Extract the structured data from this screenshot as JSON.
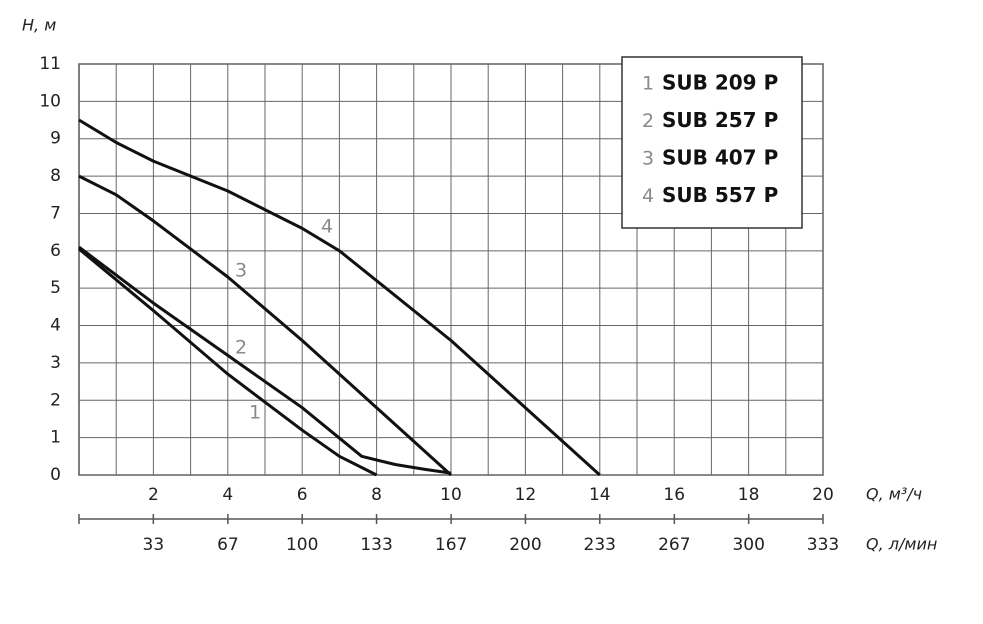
{
  "chart_data": {
    "type": "line",
    "ylabel": "H, м",
    "xlabel": "Q, м³/ч",
    "x2label": "Q, л/мин",
    "xlim": [
      0,
      20
    ],
    "xticks": [
      2,
      4,
      6,
      8,
      10,
      12,
      14,
      16,
      18,
      20
    ],
    "x2lim": [
      0,
      333.3
    ],
    "x2ticks": [
      {
        "value": 33.3,
        "label": "33"
      },
      {
        "value": 66.7,
        "label": "67"
      },
      100,
      {
        "value": 133.3,
        "label": "133"
      },
      {
        "value": 166.7,
        "label": "167"
      },
      200,
      {
        "value": 233.3,
        "label": "233"
      },
      {
        "value": 266.7,
        "label": "267"
      },
      300,
      {
        "value": 333.3,
        "label": "333"
      }
    ],
    "ylim": [
      0,
      11
    ],
    "yticks": [
      0,
      1,
      2,
      3,
      4,
      5,
      6,
      7,
      8,
      9,
      10,
      11
    ],
    "grid": true,
    "legend": "upper right",
    "series": [
      {
        "label": "1",
        "name": "SUB 209 P",
        "color": "#111111",
        "x": [
          0,
          2,
          4,
          6,
          7,
          8
        ],
        "values": [
          6.05,
          4.4,
          2.7,
          1.2,
          0.5,
          0
        ]
      },
      {
        "label": "2",
        "name": "SUB 257 P",
        "color": "#111111",
        "x": [
          0,
          2,
          4,
          6,
          7.6,
          8.5,
          9.3,
          10
        ],
        "values": [
          6.1,
          4.6,
          3.2,
          1.8,
          0.5,
          0.28,
          0.15,
          0.05
        ]
      },
      {
        "label": "3",
        "name": "SUB 407 P",
        "color": "#111111",
        "x": [
          0,
          1,
          2,
          4,
          6,
          8,
          10
        ],
        "values": [
          8,
          7.5,
          6.8,
          5.3,
          3.6,
          1.8,
          0
        ]
      },
      {
        "label": "4",
        "name": "SUB 557 P",
        "color": "#111111",
        "x": [
          0,
          1,
          2,
          4,
          6,
          7,
          8,
          10,
          12,
          14
        ],
        "values": [
          9.5,
          8.9,
          8.4,
          7.6,
          6.6,
          6.0,
          5.2,
          3.6,
          1.8,
          0
        ]
      }
    ]
  }
}
